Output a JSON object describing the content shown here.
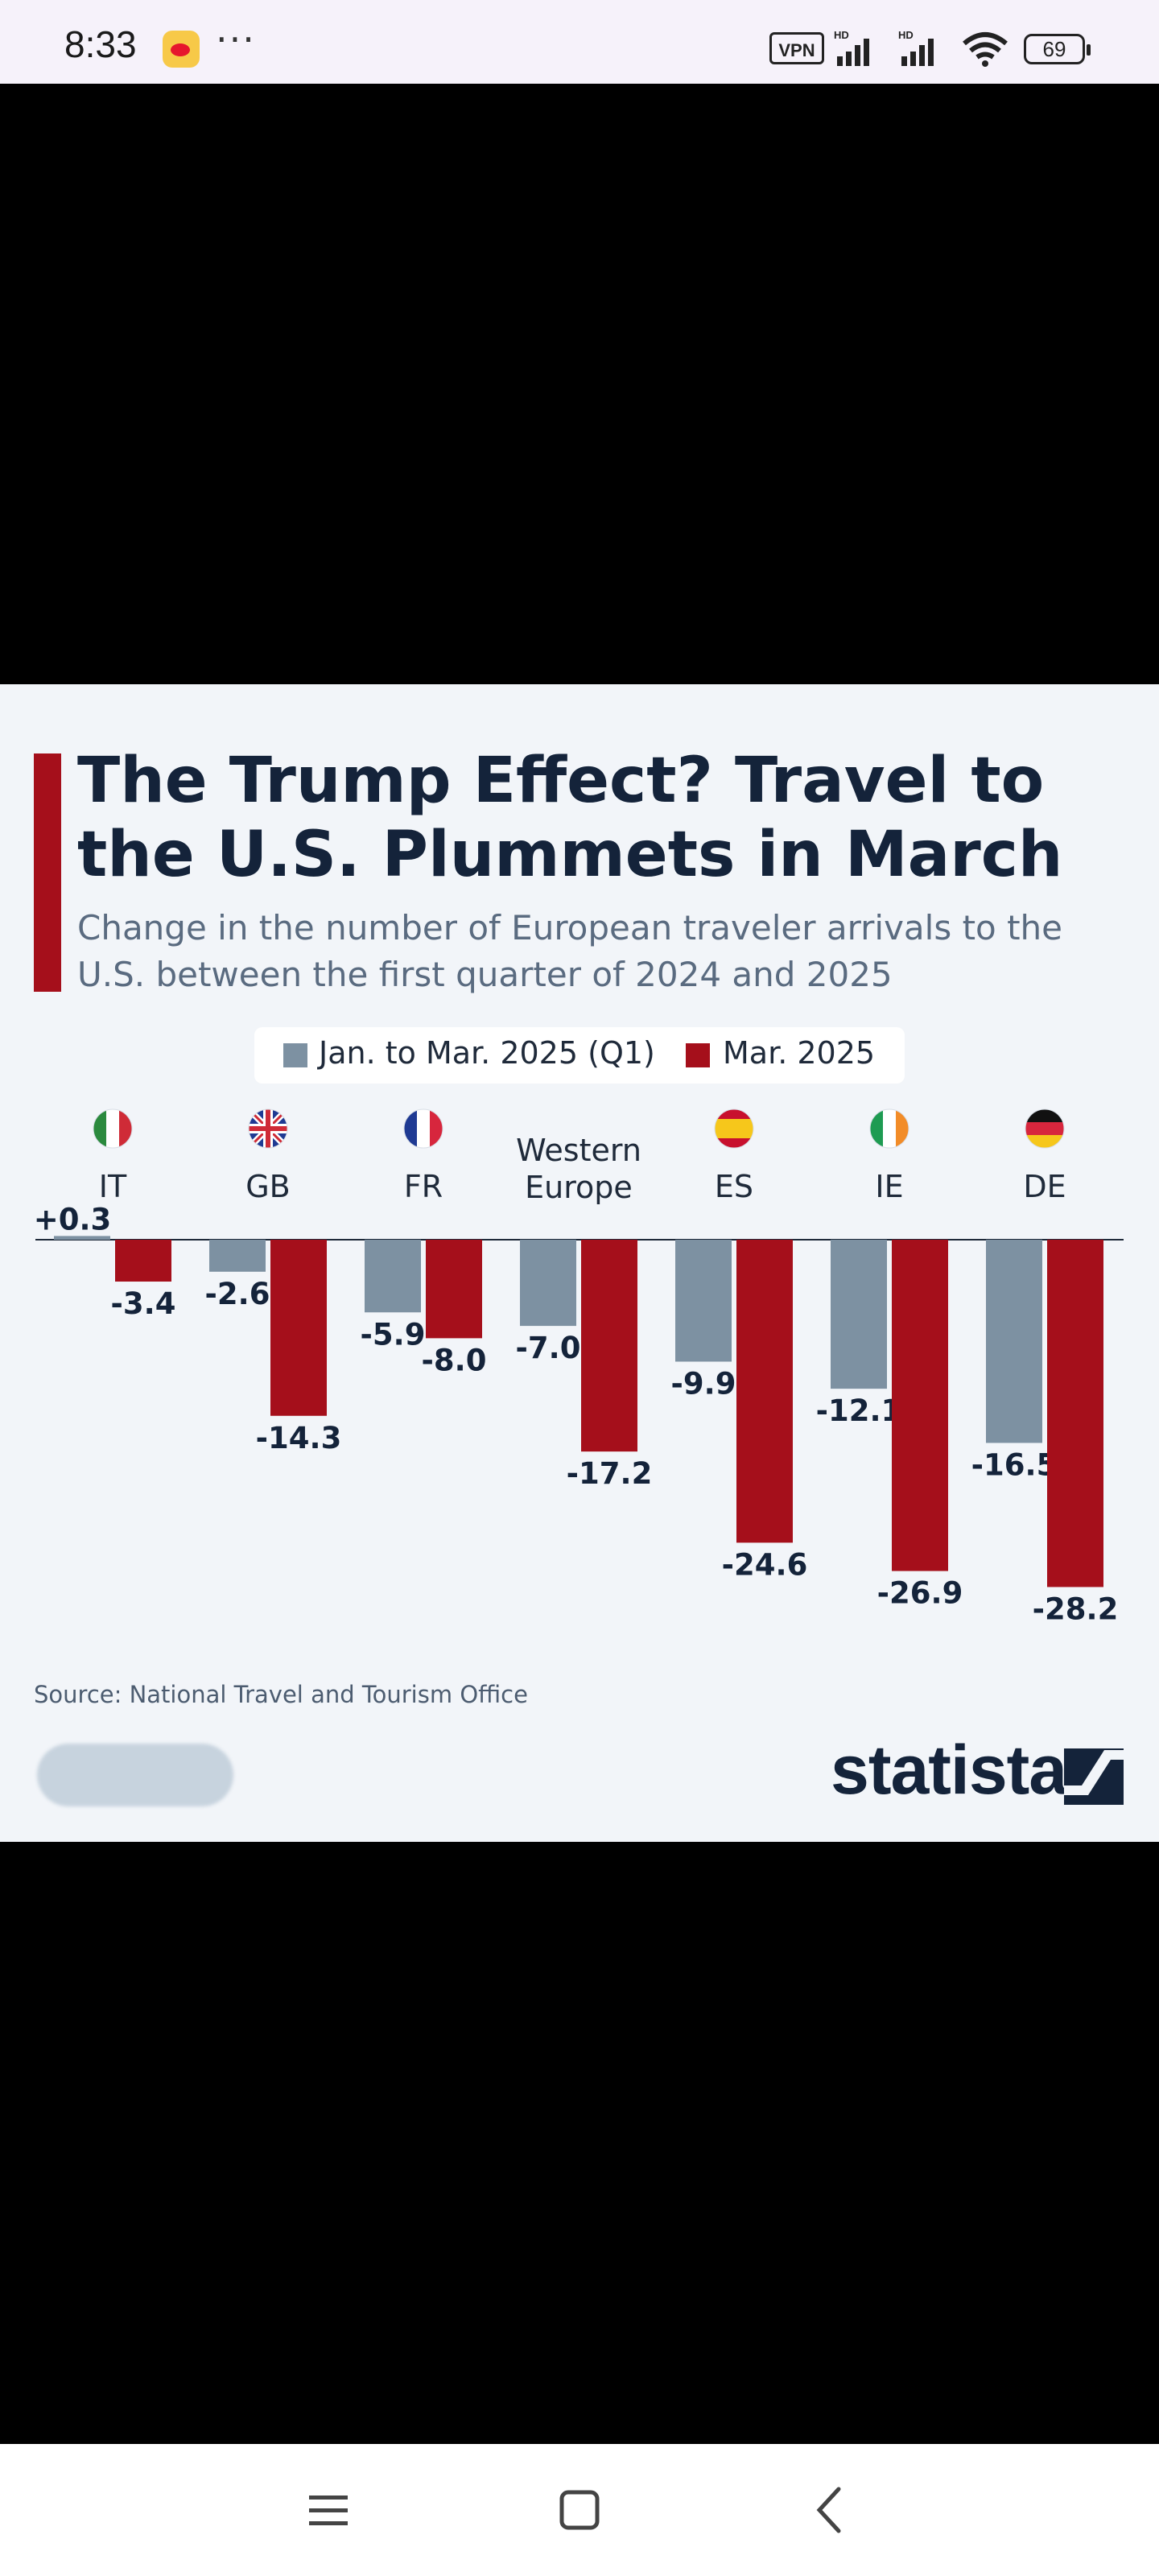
{
  "status_bar": {
    "time": "8:33",
    "vpn_label": "VPN",
    "battery": "69"
  },
  "chart_data": {
    "type": "bar",
    "title": "The Trump Effect? Travel to the U.S. Plummets in March",
    "subtitle": "Change in the number of European traveler arrivals to the U.S. between the first quarter of 2024 and 2025",
    "categories": [
      "IT",
      "GB",
      "FR",
      "Western Europe",
      "ES",
      "IE",
      "DE"
    ],
    "series": [
      {
        "name": "Jan. to Mar. 2025 (Q1)",
        "color": "#7d91a2",
        "values": [
          0.3,
          -2.6,
          -5.9,
          -7.0,
          -9.9,
          -12.1,
          -16.5
        ]
      },
      {
        "name": "Mar. 2025",
        "color": "#a50f1b",
        "values": [
          -3.4,
          -14.3,
          -8.0,
          -17.2,
          -24.6,
          -26.9,
          -28.2
        ]
      }
    ],
    "data_labels": [
      [
        "+0.3",
        "-2.6",
        "-5.9",
        "-7.0",
        "-9.9",
        "-12.1",
        "-16.5"
      ],
      [
        "-3.4",
        "-14.3",
        "-8.0",
        "-17.2",
        "-24.6",
        "-26.9",
        "-28.2"
      ]
    ],
    "ylim": [
      -30,
      1
    ],
    "legend": "top-center",
    "source": "Source: National Travel and Tourism Office",
    "brand": "statista"
  },
  "colors": {
    "q1": "#7d91a2",
    "march": "#a50f1b",
    "title": "#14233a",
    "background": "#f2f5f9"
  },
  "icons": {
    "flags": [
      "italy-flag-icon",
      "uk-flag-icon",
      "france-flag-icon",
      "",
      "spain-flag-icon",
      "ireland-flag-icon",
      "germany-flag-icon"
    ],
    "nav": [
      "menu-icon",
      "home-square-icon",
      "back-chevron-icon"
    ]
  }
}
